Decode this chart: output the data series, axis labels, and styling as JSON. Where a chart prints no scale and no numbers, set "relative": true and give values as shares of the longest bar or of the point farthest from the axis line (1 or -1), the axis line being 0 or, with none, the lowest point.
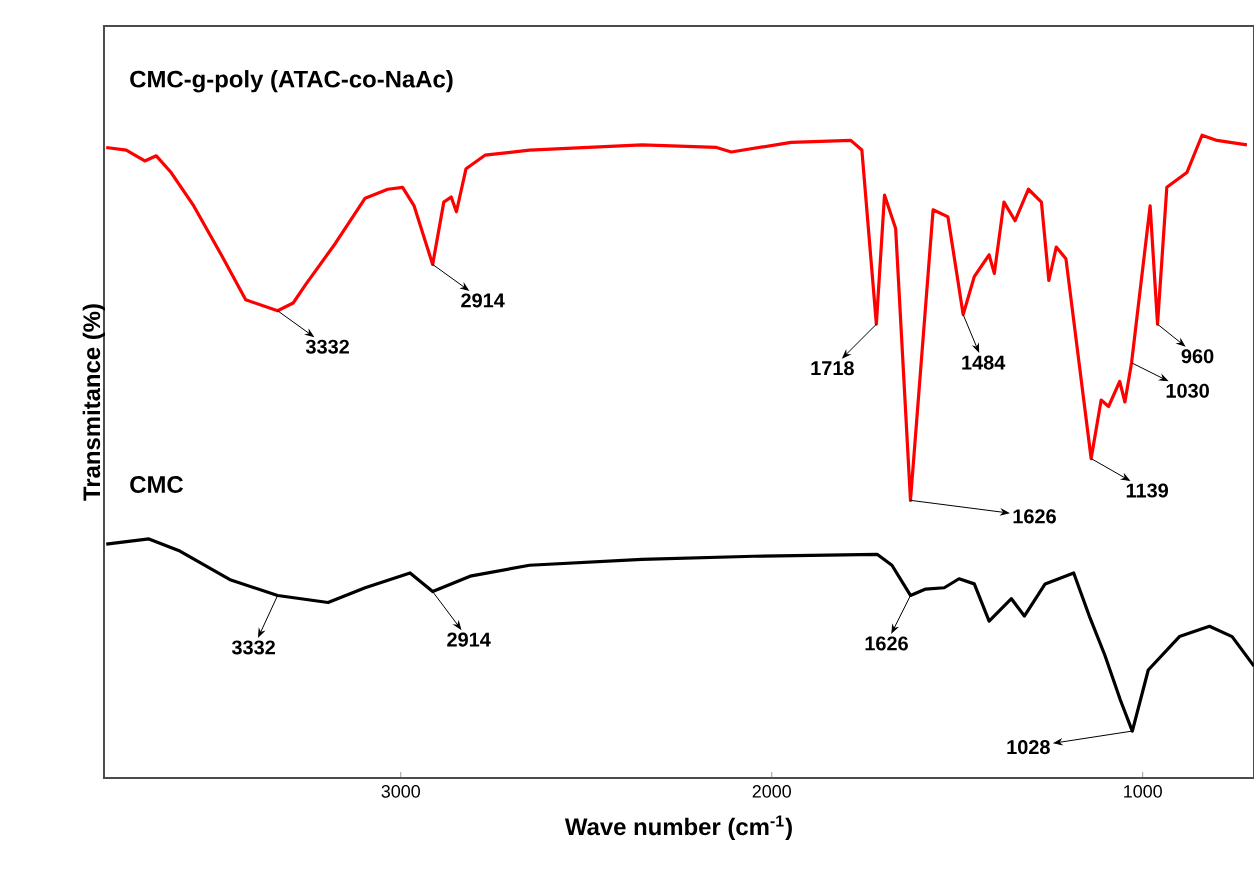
{
  "chart_data": {
    "type": "line",
    "relative": true,
    "xlabel": "Wave number (cm$^{-1}$)",
    "ylabel": "Transmitance (%)",
    "xlim": [
      3800,
      700
    ],
    "xticks": [
      3000,
      2000,
      1000
    ],
    "series": [
      {
        "name": "CMC-g-poly (ATAC-co-NaAc)",
        "color": "#ff0000",
        "x": [
          3794,
          3740,
          3690,
          3659,
          3619,
          3558,
          3478,
          3418,
          3332,
          3290,
          3256,
          3176,
          3096,
          3035,
          2995,
          2964,
          2914,
          2884,
          2864,
          2850,
          2824,
          2773,
          2653,
          2350,
          2149,
          2109,
          1948,
          1787,
          1757,
          1718,
          1696,
          1666,
          1626,
          1565,
          1525,
          1484,
          1454,
          1414,
          1400,
          1374,
          1344,
          1308,
          1273,
          1253,
          1233,
          1207,
          1139,
          1112,
          1092,
          1062,
          1048,
          1030,
          980,
          960,
          935,
          881,
          840,
          800,
          719
        ],
        "values": [
          0.981,
          0.977,
          0.96,
          0.968,
          0.942,
          0.89,
          0.808,
          0.744,
          0.727,
          0.739,
          0.768,
          0.832,
          0.902,
          0.916,
          0.919,
          0.89,
          0.799,
          0.896,
          0.904,
          0.881,
          0.948,
          0.969,
          0.977,
          0.985,
          0.981,
          0.974,
          0.989,
          0.992,
          0.977,
          0.706,
          0.907,
          0.855,
          0.432,
          0.884,
          0.873,
          0.721,
          0.78,
          0.814,
          0.785,
          0.896,
          0.867,
          0.916,
          0.896,
          0.774,
          0.826,
          0.808,
          0.497,
          0.588,
          0.578,
          0.617,
          0.585,
          0.646,
          0.89,
          0.706,
          0.919,
          0.942,
          1.0,
          0.992,
          0.985
        ]
      },
      {
        "name": "CMC",
        "color": "#000000",
        "x": [
          3794,
          3679,
          3599,
          3458,
          3332,
          3196,
          3096,
          2975,
          2914,
          2813,
          2653,
          2350,
          2048,
          1716,
          1676,
          1626,
          1585,
          1535,
          1495,
          1454,
          1414,
          1354,
          1319,
          1263,
          1186,
          1142,
          1102,
          1060,
          1028,
          985,
          901,
          820,
          759,
          700
        ],
        "values": [
          0.364,
          0.372,
          0.354,
          0.308,
          0.284,
          0.273,
          0.296,
          0.319,
          0.29,
          0.314,
          0.331,
          0.34,
          0.345,
          0.348,
          0.331,
          0.284,
          0.294,
          0.296,
          0.31,
          0.302,
          0.244,
          0.279,
          0.252,
          0.302,
          0.319,
          0.249,
          0.191,
          0.121,
          0.073,
          0.168,
          0.22,
          0.236,
          0.22,
          0.174
        ]
      }
    ],
    "annotations": [
      {
        "text": "3332",
        "x": 3332,
        "y": 0.727
      },
      {
        "text": "2914",
        "x": 2914,
        "y": 0.799
      },
      {
        "text": "1718",
        "x": 1718,
        "y": 0.706
      },
      {
        "text": "1626",
        "x": 1626,
        "y": 0.432
      },
      {
        "text": "1484",
        "x": 1484,
        "y": 0.721
      },
      {
        "text": "1139",
        "x": 1139,
        "y": 0.497
      },
      {
        "text": "1030",
        "x": 1030,
        "y": 0.646
      },
      {
        "text": "960",
        "x": 960,
        "y": 0.706
      },
      {
        "text": "3332",
        "x": 3332,
        "y": 0.284
      },
      {
        "text": "2914",
        "x": 2914,
        "y": 0.29
      },
      {
        "text": "1626",
        "x": 1626,
        "y": 0.284
      },
      {
        "text": "1028",
        "x": 1028,
        "y": 0.073
      }
    ]
  }
}
